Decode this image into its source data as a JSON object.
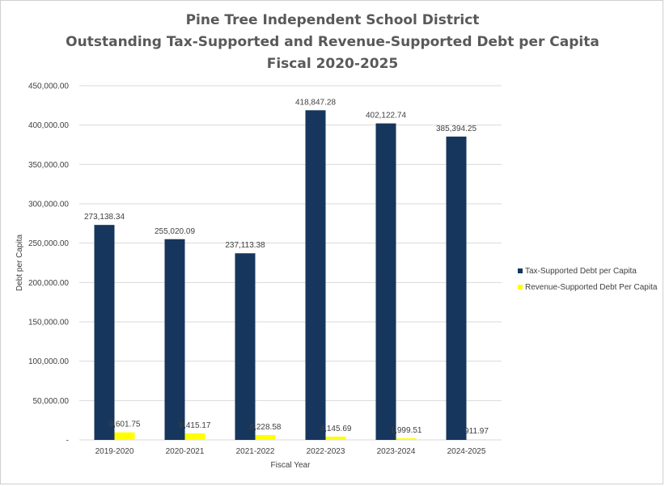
{
  "chart_data": {
    "type": "bar",
    "title": [
      "Pine Tree Independent School District",
      "Outstanding Tax-Supported and Revenue-Supported Debt per Capita",
      "Fiscal 2020-2025"
    ],
    "xlabel": "Fiscal Year",
    "ylabel": "Debt per Capita",
    "ylim": [
      0,
      450000
    ],
    "yticks": [
      0,
      50000,
      100000,
      150000,
      200000,
      250000,
      300000,
      350000,
      400000,
      450000
    ],
    "ytick_labels": [
      "-",
      "50,000.00",
      "100,000.00",
      "150,000.00",
      "200,000.00",
      "250,000.00",
      "300,000.00",
      "350,000.00",
      "400,000.00",
      "450,000.00"
    ],
    "categories": [
      "2019-2020",
      "2020-2021",
      "2021-2022",
      "2022-2023",
      "2023-2024",
      "2024-2025"
    ],
    "series": [
      {
        "name": "Tax-Supported Debt per Capita",
        "color": "#17365d",
        "values": [
          273138.34,
          255020.09,
          237113.38,
          418847.28,
          402122.74,
          385394.25
        ],
        "labels": [
          "273,138.34",
          "255,020.09",
          "237,113.38",
          "418,847.28",
          "402,122.74",
          "385,394.25"
        ]
      },
      {
        "name": "Revenue-Supported Debt Per Capita",
        "color": "#ffff00",
        "values": [
          9601.75,
          8415.17,
          6228.58,
          4145.69,
          1999.51,
          911.97
        ],
        "labels": [
          "9,601.75",
          "8,415.17",
          "6,228.58",
          "4,145.69",
          "1,999.51",
          "911.97"
        ]
      }
    ],
    "grid": true,
    "legend_position": "right"
  }
}
